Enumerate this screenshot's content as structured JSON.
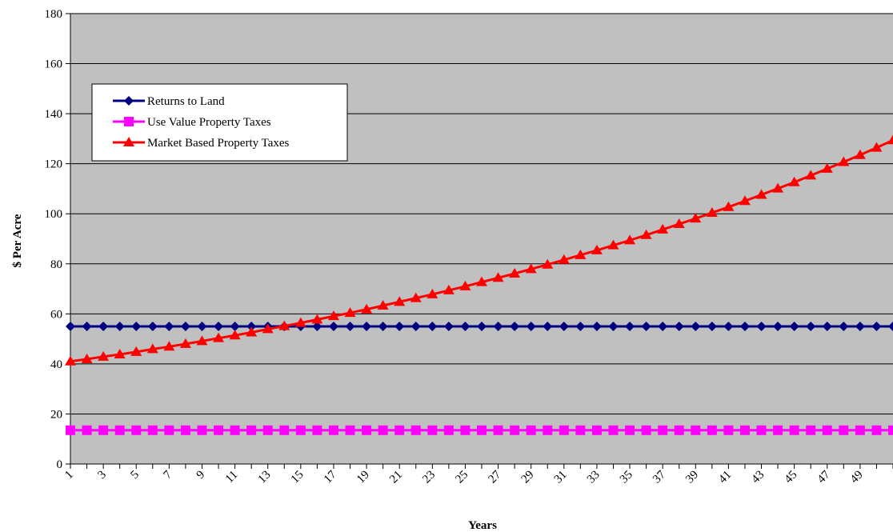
{
  "chart_data": {
    "type": "line",
    "xlabel": "Years",
    "ylabel": "$ Per Acre",
    "ylim": [
      0,
      180
    ],
    "yticks": [
      0,
      20,
      40,
      60,
      80,
      100,
      120,
      140,
      160,
      180
    ],
    "x_tick_labels": [
      "1",
      "3",
      "5",
      "7",
      "9",
      "11",
      "13",
      "15",
      "17",
      "19",
      "21",
      "23",
      "25",
      "27",
      "29",
      "31",
      "33",
      "35",
      "37",
      "39",
      "41",
      "43",
      "45",
      "47",
      "49"
    ],
    "x": [
      1,
      2,
      3,
      4,
      5,
      6,
      7,
      8,
      9,
      10,
      11,
      12,
      13,
      14,
      15,
      16,
      17,
      18,
      19,
      20,
      21,
      22,
      23,
      24,
      25,
      26,
      27,
      28,
      29,
      30,
      31,
      32,
      33,
      34,
      35,
      36,
      37,
      38,
      39,
      40,
      41,
      42,
      43,
      44,
      45,
      46,
      47,
      48,
      49,
      50,
      51
    ],
    "grid": "horizontal",
    "plot_background": "#c0c0c0",
    "legend_position": "upper-left",
    "series": [
      {
        "name": "Returns to Land",
        "color": "#000080",
        "marker": "diamond",
        "values": [
          55,
          55,
          55,
          55,
          55,
          55,
          55,
          55,
          55,
          55,
          55,
          55,
          55,
          55,
          55,
          55,
          55,
          55,
          55,
          55,
          55,
          55,
          55,
          55,
          55,
          55,
          55,
          55,
          55,
          55,
          55,
          55,
          55,
          55,
          55,
          55,
          55,
          55,
          55,
          55,
          55,
          55,
          55,
          55,
          55,
          55,
          55,
          55,
          55,
          55,
          55
        ]
      },
      {
        "name": "Use Value Property Taxes",
        "color": "#ff00ff",
        "marker": "square",
        "values": [
          13.5,
          13.5,
          13.5,
          13.5,
          13.5,
          13.5,
          13.5,
          13.5,
          13.5,
          13.5,
          13.5,
          13.5,
          13.5,
          13.5,
          13.5,
          13.5,
          13.5,
          13.5,
          13.5,
          13.5,
          13.5,
          13.5,
          13.5,
          13.5,
          13.5,
          13.5,
          13.5,
          13.5,
          13.5,
          13.5,
          13.5,
          13.5,
          13.5,
          13.5,
          13.5,
          13.5,
          13.5,
          13.5,
          13.5,
          13.5,
          13.5,
          13.5,
          13.5,
          13.5,
          13.5,
          13.5,
          13.5,
          13.5,
          13.5,
          13.5,
          13.5
        ]
      },
      {
        "name": "Market Based Property Taxes",
        "color": "#ff0000",
        "marker": "triangle",
        "values": [
          41,
          41.9,
          42.9,
          43.8,
          44.8,
          45.9,
          46.9,
          48,
          49.1,
          50.3,
          51.4,
          52.6,
          53.9,
          55.1,
          56.4,
          57.7,
          59.1,
          60.4,
          61.8,
          63.3,
          64.8,
          66.3,
          67.8,
          69.4,
          71,
          72.7,
          74.4,
          76.1,
          77.9,
          79.7,
          81.6,
          83.5,
          85.4,
          87.4,
          89.4,
          91.5,
          93.7,
          95.9,
          98.1,
          100.4,
          102.7,
          105.1,
          107.6,
          110.1,
          112.6,
          115.3,
          118,
          120.7,
          123.5,
          126.4,
          129.4
        ]
      }
    ]
  }
}
